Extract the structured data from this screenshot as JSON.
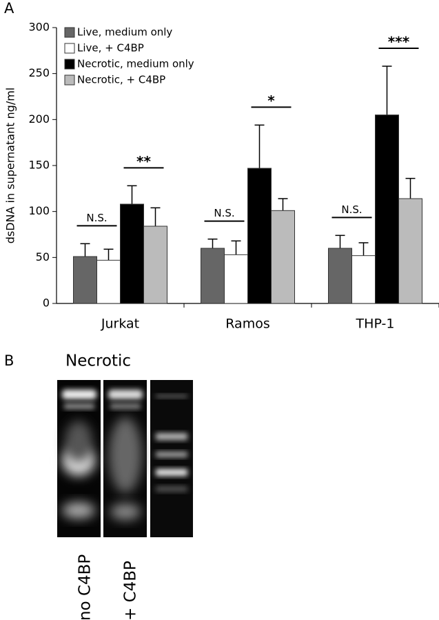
{
  "chart_data": {
    "type": "bar",
    "panel_label": "A",
    "ylabel": "dsDNA in supernatant  ng/ml",
    "categories": [
      "Jurkat",
      "Ramos",
      "THP-1"
    ],
    "series": [
      {
        "name": "Live, medium only",
        "color": "#666666",
        "values": [
          51,
          60,
          60
        ],
        "errors": [
          14,
          10,
          14
        ]
      },
      {
        "name": "Live, + C4BP",
        "color": "#ffffff",
        "values": [
          47,
          53,
          52
        ],
        "errors": [
          12,
          15,
          14
        ]
      },
      {
        "name": "Necrotic, medium only",
        "color": "#000000",
        "values": [
          108,
          147,
          205
        ],
        "errors": [
          20,
          47,
          53
        ]
      },
      {
        "name": "Necrotic, + C4BP",
        "color": "#bbbbbb",
        "values": [
          84,
          101,
          114
        ],
        "errors": [
          20,
          13,
          22
        ]
      }
    ],
    "annotations": [
      [
        "N.S.",
        "**"
      ],
      [
        "N.S.",
        "*"
      ],
      [
        "N.S.",
        "***"
      ]
    ],
    "ylim": [
      0,
      300
    ],
    "yticks": [
      0,
      50,
      100,
      150,
      200,
      250,
      300
    ],
    "legend": "upper left",
    "grid": false
  },
  "panel_b": {
    "label": "B",
    "title": "Necrotic",
    "lanes": [
      "no C4BP",
      "+ C4BP"
    ]
  }
}
